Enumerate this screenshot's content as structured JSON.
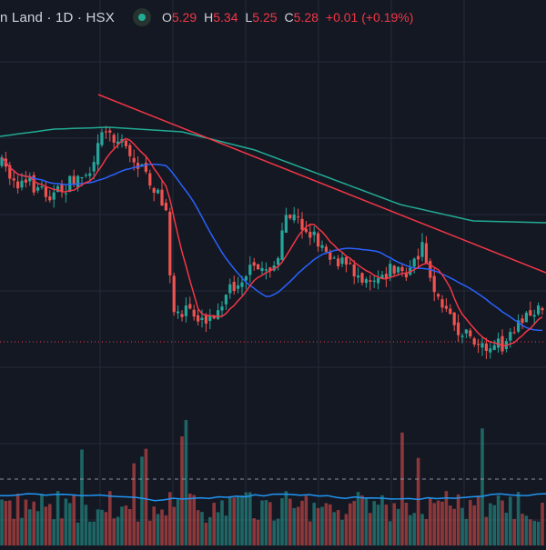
{
  "header": {
    "symbol_text": "n Land · 1D · HSX",
    "status_icon": "market-status-dot-icon",
    "ohlc": {
      "o_label": "O",
      "o_value": "5.29",
      "h_label": "H",
      "h_value": "5.34",
      "l_label": "L",
      "l_value": "5.25",
      "c_label": "C",
      "c_value": "5.28",
      "change": "+0.01 (+0.19%)"
    }
  },
  "colors": {
    "background": "#141823",
    "grid": "#232a39",
    "up": "#26a69a",
    "down": "#ef5350",
    "ma_red": "#f23645",
    "ma_blue": "#2962ff",
    "ma_green": "#22ab94",
    "volume_ma": "#2196f3",
    "trendline": "#f23645",
    "price_line": "#f23645",
    "legend_value": "#f23645"
  },
  "chart_data": {
    "type": "candlestick",
    "interval": "1D",
    "exchange": "HSX",
    "indicators": [
      "MA (red)",
      "MA (blue)",
      "MA (green)",
      "Volume",
      "Volume MA"
    ],
    "grid": true,
    "last_bar": {
      "open": 5.29,
      "high": 5.34,
      "low": 5.25,
      "close": 5.28,
      "change": 0.01,
      "change_pct": 0.19
    }
  }
}
